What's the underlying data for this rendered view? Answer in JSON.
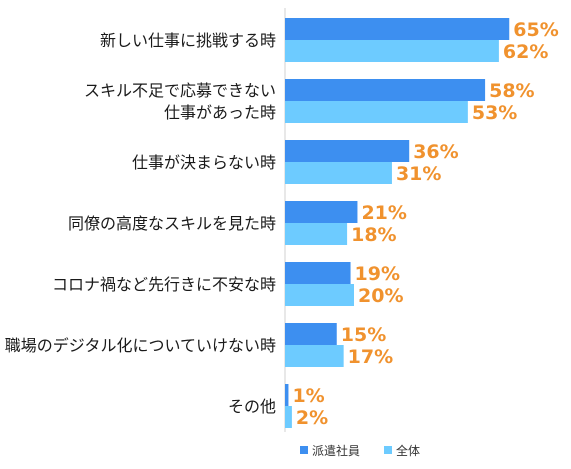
{
  "chart_data": {
    "type": "bar",
    "orientation": "horizontal",
    "categories": [
      [
        "新しい仕事に挑戦する時"
      ],
      [
        "スキル不足で応募できない",
        "仕事があった時"
      ],
      [
        "仕事が決まらない時"
      ],
      [
        "同僚の高度なスキルを見た時"
      ],
      [
        "コロナ禍など先行きに不安な時"
      ],
      [
        "職場のデジタル化についていけない時"
      ],
      [
        "その他"
      ]
    ],
    "series": [
      {
        "name": "派遣社員",
        "values": [
          65,
          58,
          36,
          21,
          19,
          15,
          1
        ],
        "labels": [
          "65%",
          "58%",
          "36%",
          "21%",
          "19%",
          "15%",
          "1%"
        ],
        "color": "#3d8ff0"
      },
      {
        "name": "全体",
        "values": [
          62,
          53,
          31,
          18,
          20,
          17,
          2
        ],
        "labels": [
          "62%",
          "53%",
          "31%",
          "18%",
          "20%",
          "17%",
          "2%"
        ],
        "color": "#6dcbff"
      }
    ],
    "value_label_color": "#f0922e",
    "xlim": [
      0,
      100
    ],
    "unit": "%",
    "grid": false,
    "legend_position": "bottom-right"
  }
}
